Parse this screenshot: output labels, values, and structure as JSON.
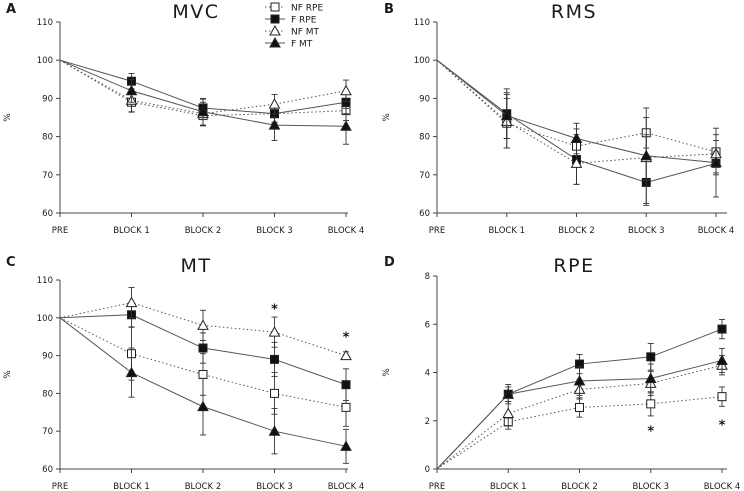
{
  "legend": [
    {
      "label": "NF RPE",
      "marker": "square-open",
      "line": "dotted"
    },
    {
      "label": "F RPE",
      "marker": "square-filled",
      "line": "solid"
    },
    {
      "label": "NF MT",
      "marker": "triangle-open",
      "line": "dotted"
    },
    {
      "label": "F MT",
      "marker": "triangle-filled",
      "line": "solid"
    }
  ],
  "colors": {
    "line": "#555555",
    "marker_fill": "#111111",
    "open_fill": "#ffffff"
  },
  "chart_data": [
    {
      "letter": "A",
      "type": "line",
      "title": "MVC",
      "ylabel": "%",
      "categories": [
        "PRE",
        "BLOCK 1",
        "BLOCK 2",
        "BLOCK 3",
        "BLOCK 4"
      ],
      "ylim": [
        60,
        110
      ],
      "yticks": [
        60,
        70,
        80,
        90,
        100,
        110
      ],
      "series": [
        {
          "name": "NF RPE",
          "values": [
            100,
            89,
            85.5,
            86,
            86.8
          ],
          "err": [
            0,
            2.6,
            2.7,
            2.2,
            2.6
          ]
        },
        {
          "name": "F RPE",
          "values": [
            100,
            94.5,
            87.5,
            86,
            89
          ],
          "err": [
            0,
            2,
            2.3,
            2.5,
            3
          ]
        },
        {
          "name": "NF MT",
          "values": [
            100,
            89.5,
            86,
            88.5,
            92
          ],
          "err": [
            0,
            3,
            3,
            2.5,
            2.8
          ]
        },
        {
          "name": "F MT",
          "values": [
            100,
            92,
            86.5,
            83,
            82.7
          ],
          "err": [
            0,
            3,
            3.5,
            4,
            4.7
          ]
        }
      ],
      "annotations": []
    },
    {
      "letter": "B",
      "type": "line",
      "title": "RMS",
      "ylabel": "%",
      "categories": [
        "PRE",
        "BLOCK 1",
        "BLOCK 2",
        "BLOCK 3",
        "BLOCK 4"
      ],
      "ylim": [
        60,
        110
      ],
      "yticks": [
        60,
        70,
        80,
        90,
        100,
        110
      ],
      "series": [
        {
          "name": "NF RPE",
          "values": [
            100,
            83.5,
            77.5,
            81,
            76
          ],
          "err": [
            0,
            6.5,
            4.5,
            4,
            3
          ]
        },
        {
          "name": "F RPE",
          "values": [
            100,
            86,
            74,
            68,
            73
          ],
          "err": [
            0,
            6.5,
            6.5,
            6,
            3
          ]
        },
        {
          "name": "NF MT",
          "values": [
            100,
            84,
            73,
            74.5,
            75.5
          ],
          "err": [
            0,
            7,
            5.5,
            6,
            5
          ]
        },
        {
          "name": "F MT",
          "values": [
            100,
            85.5,
            79.5,
            75,
            73.2
          ],
          "err": [
            0,
            6,
            4,
            12.5,
            9
          ]
        }
      ],
      "annotations": []
    },
    {
      "letter": "C",
      "type": "line",
      "title": "MT",
      "ylabel": "%",
      "categories": [
        "PRE",
        "BLOCK 1",
        "BLOCK 2",
        "BLOCK 3",
        "BLOCK 4"
      ],
      "ylim": [
        60,
        110
      ],
      "yticks": [
        60,
        70,
        80,
        90,
        100,
        110
      ],
      "series": [
        {
          "name": "NF RPE",
          "values": [
            100,
            90.5,
            85,
            80,
            76.3
          ],
          "err": [
            0,
            7,
            5.5,
            5.5,
            5
          ]
        },
        {
          "name": "F RPE",
          "values": [
            100,
            100.8,
            92,
            89,
            82.3
          ],
          "err": [
            0,
            3.2,
            4,
            4.5,
            4.2
          ]
        },
        {
          "name": "NF MT",
          "values": [
            100,
            104,
            98,
            96.2,
            90
          ],
          "err": [
            0,
            4,
            4,
            4,
            1
          ]
        },
        {
          "name": "F MT",
          "values": [
            100,
            85.5,
            76.5,
            70,
            66
          ],
          "err": [
            0,
            6.5,
            7.5,
            6,
            4.5
          ]
        }
      ],
      "annotations": [
        {
          "text": "*",
          "category": "BLOCK 3",
          "value": 102.5
        },
        {
          "text": "*",
          "category": "BLOCK 4",
          "value": 95
        }
      ]
    },
    {
      "letter": "D",
      "type": "line",
      "title": "RPE",
      "ylabel": "%",
      "categories": [
        "PRE",
        "BLOCK 1",
        "BLOCK 2",
        "BLOCK 3",
        "BLOCK 4"
      ],
      "ylim": [
        0,
        8
      ],
      "yticks": [
        0,
        2,
        4,
        6,
        8
      ],
      "series": [
        {
          "name": "NF RPE",
          "values": [
            0,
            1.95,
            2.55,
            2.7,
            3
          ],
          "err": [
            0,
            0.3,
            0.4,
            0.5,
            0.4
          ]
        },
        {
          "name": "F RPE",
          "values": [
            0,
            3.1,
            4.35,
            4.65,
            5.8
          ],
          "err": [
            0,
            0.3,
            0.4,
            0.55,
            0.4
          ]
        },
        {
          "name": "NF MT",
          "values": [
            0,
            2.3,
            3.3,
            3.55,
            4.3
          ],
          "err": [
            0,
            0.5,
            0.4,
            0.5,
            0.4
          ]
        },
        {
          "name": "F MT",
          "values": [
            0,
            3.1,
            3.65,
            3.75,
            4.5
          ],
          "err": [
            0,
            0.4,
            0.6,
            0.6,
            0.5
          ]
        }
      ],
      "annotations": [
        {
          "text": "*",
          "category": "BLOCK 3",
          "value": 1.6
        },
        {
          "text": "*",
          "category": "BLOCK 4",
          "value": 1.85
        }
      ]
    }
  ]
}
